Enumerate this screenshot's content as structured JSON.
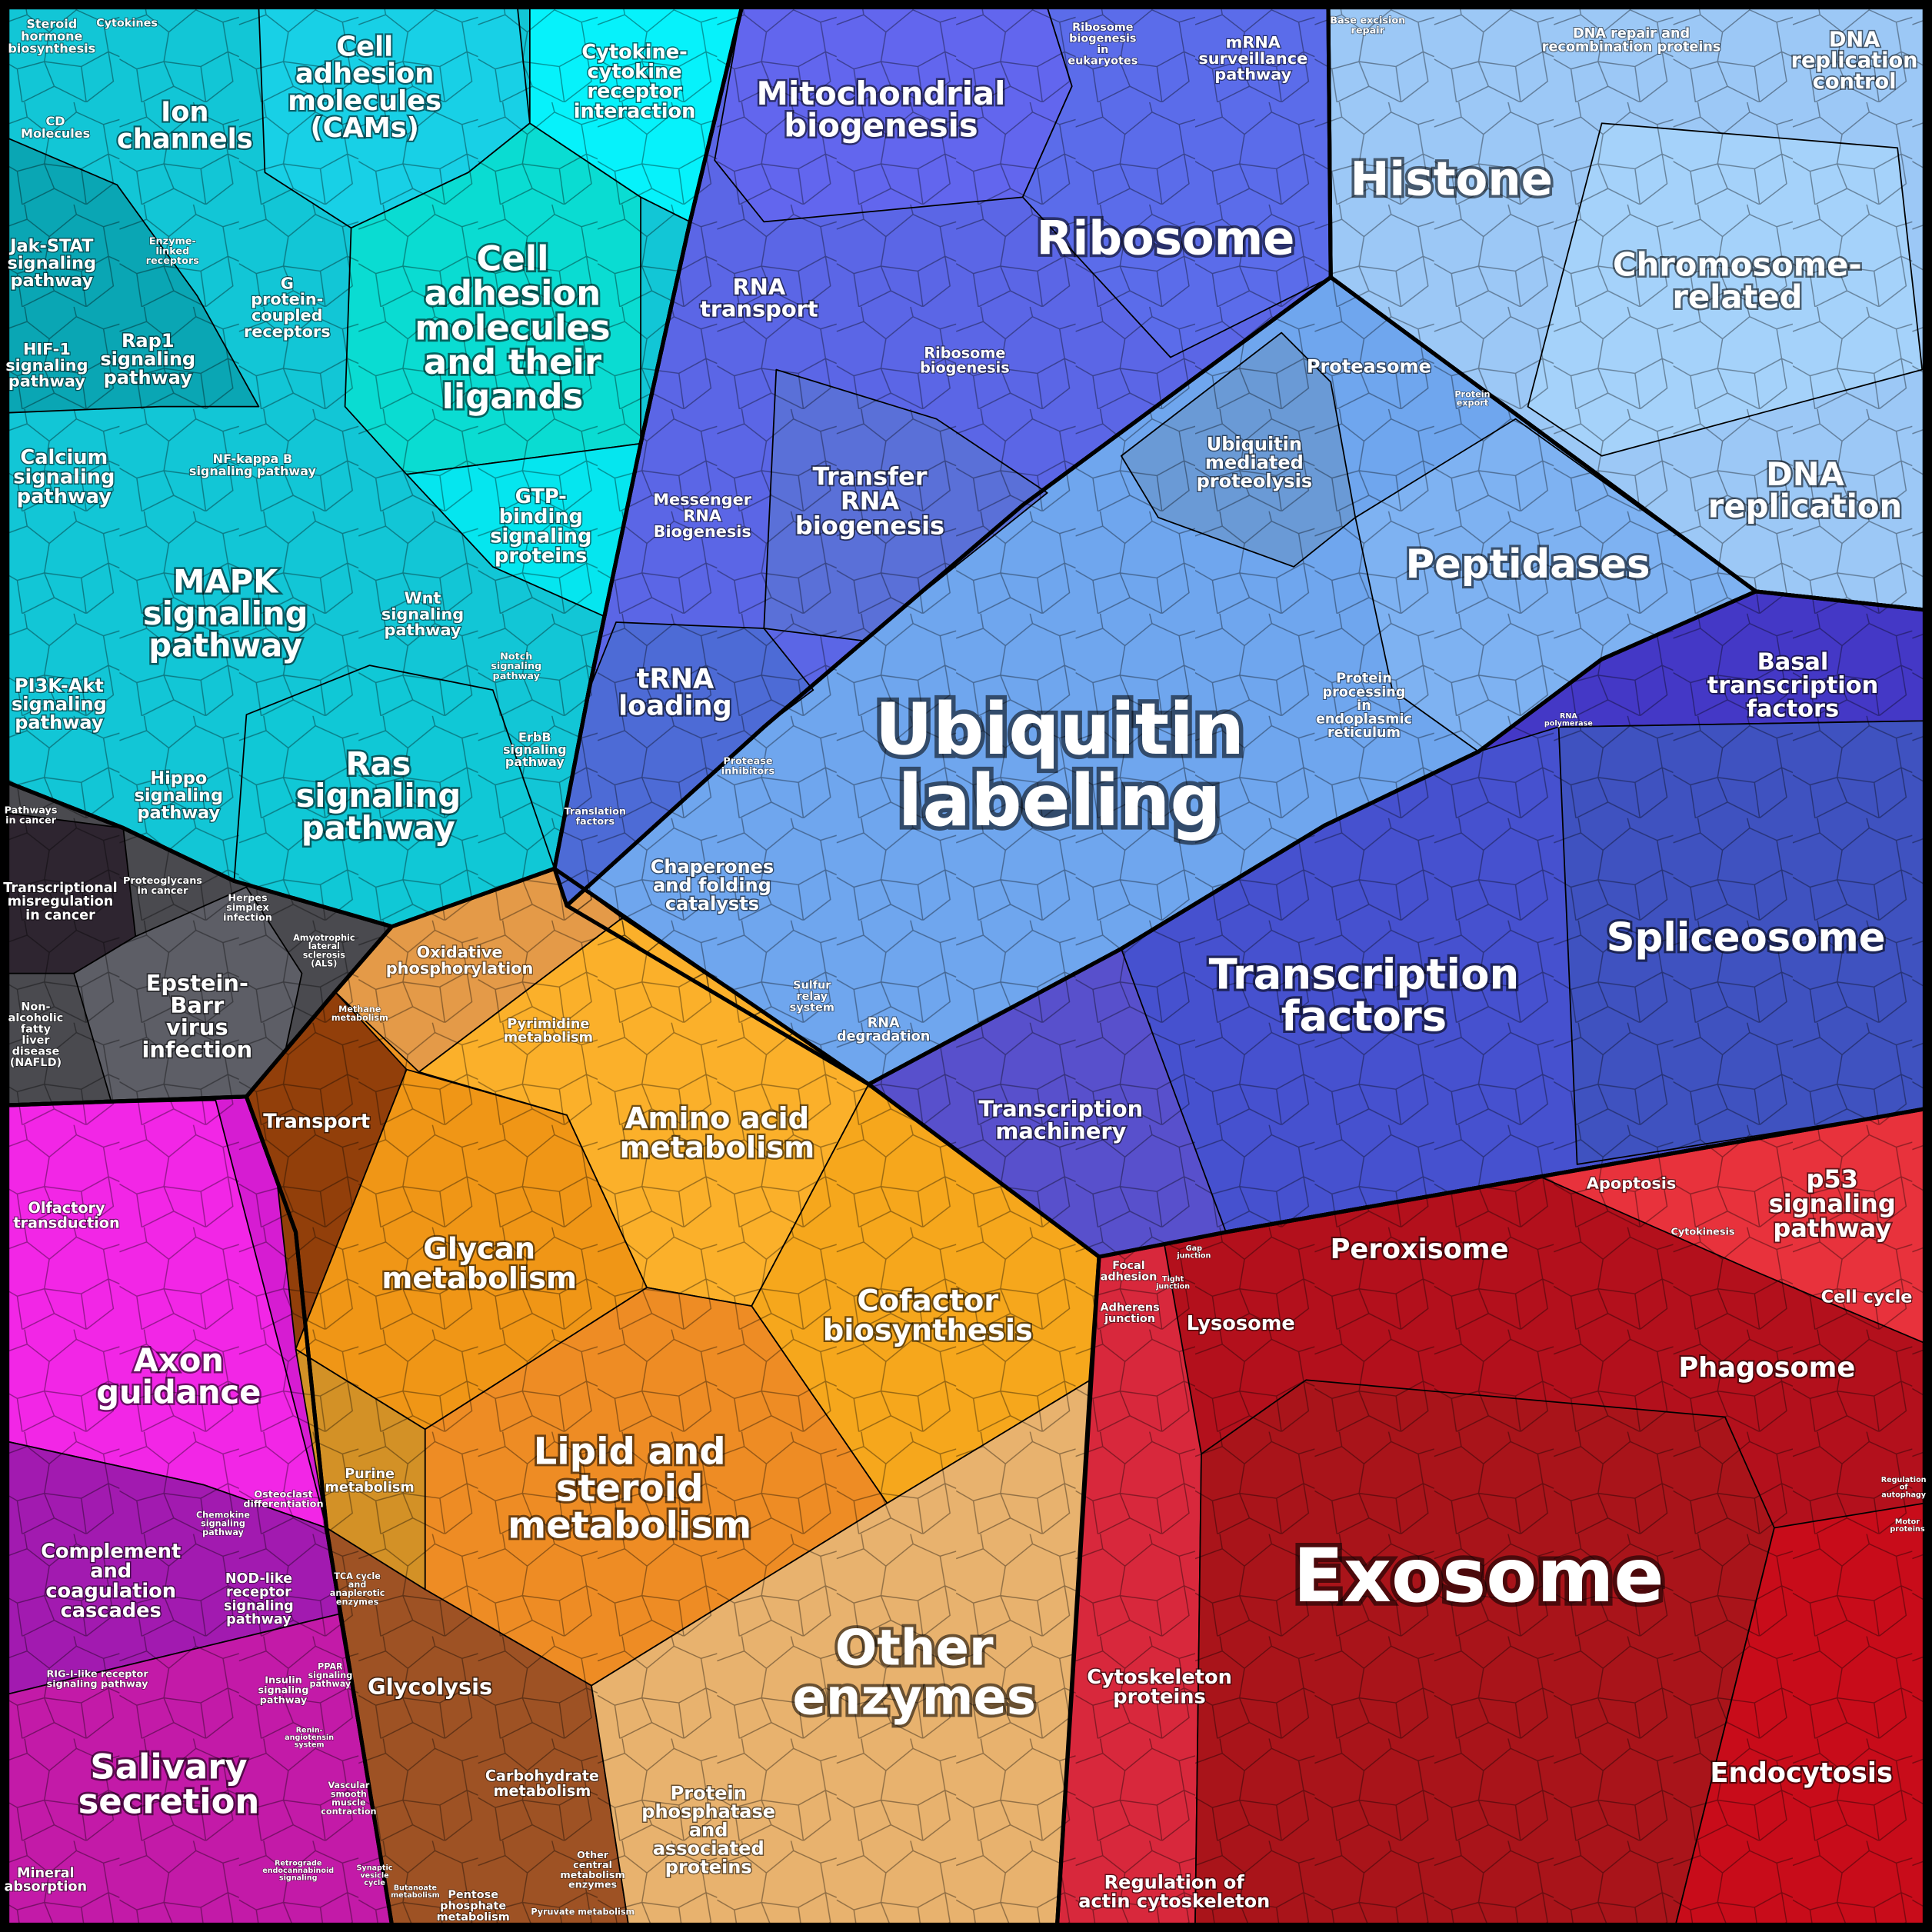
{
  "labels": [
    [
      "Ubiquitin",
      "labeling"
    ],
    [
      "Exosome"
    ],
    [
      "Ribosome"
    ],
    [
      "Histone"
    ],
    [
      "Chromosome-",
      "related"
    ],
    [
      "DNA",
      "replication"
    ],
    [
      "DNA",
      "replication",
      "control"
    ],
    [
      "Peptidases"
    ],
    [
      "Basal",
      "transcription",
      "factors"
    ],
    [
      "Spliceosome"
    ],
    [
      "Transcription",
      "factors"
    ],
    [
      "Transcription",
      "machinery"
    ],
    [
      "Mitochondrial",
      "biogenesis"
    ],
    [
      "RNA",
      "transport"
    ],
    [
      "Ribosome",
      "biogenesis"
    ],
    [
      "Transfer",
      "RNA",
      "biogenesis"
    ],
    [
      "Messenger",
      "RNA",
      "Biogenesis"
    ],
    [
      "tRNA",
      "loading"
    ],
    [
      "Ribosome",
      "biogenesis",
      "in",
      "eukaryotes"
    ],
    [
      "mRNA",
      "surveillance",
      "pathway"
    ],
    [
      "Base excision",
      "repair"
    ],
    [
      "DNA repair and",
      "recombination proteins"
    ],
    [
      "Proteasome"
    ],
    [
      "Protein",
      "export"
    ],
    [
      "Ubiquitin",
      "mediated",
      "proteolysis"
    ],
    [
      "Protein",
      "processing",
      "in",
      "endoplasmic",
      "reticulum"
    ],
    [
      "RNA",
      "polymerase"
    ],
    [
      "Protease",
      "inhibitors"
    ],
    [
      "Translation",
      "factors"
    ],
    [
      "Chaperones",
      "and folding",
      "catalysts"
    ],
    [
      "Sulfur",
      "relay",
      "system"
    ],
    [
      "RNA",
      "degradation"
    ],
    [
      "Cell",
      "adhesion",
      "molecules",
      "and their",
      "ligands"
    ],
    [
      "Cell",
      "adhesion",
      "molecules",
      "(CAMs)"
    ],
    [
      "Cytokine-",
      "cytokine",
      "receptor",
      "interaction"
    ],
    [
      "Ion",
      "channels"
    ],
    [
      "Steroid",
      "hormone",
      "biosynthesis"
    ],
    [
      "Cytokines"
    ],
    [
      "CD",
      "Molecules"
    ],
    [
      "Jak-STAT",
      "signaling",
      "pathway"
    ],
    [
      "Enzyme-",
      "linked",
      "receptors"
    ],
    [
      "G",
      "protein-",
      "coupled",
      "receptors"
    ],
    [
      "HIF-1",
      "signaling",
      "pathway"
    ],
    [
      "Rap1",
      "signaling",
      "pathway"
    ],
    [
      "NF-kappa B",
      "signaling pathway"
    ],
    [
      "Calcium",
      "signaling",
      "pathway"
    ],
    [
      "GTP-",
      "binding",
      "signaling",
      "proteins"
    ],
    [
      "MAPK",
      "signaling",
      "pathway"
    ],
    [
      "Wnt",
      "signaling",
      "pathway"
    ],
    [
      "Notch",
      "signaling",
      "pathway"
    ],
    [
      "PI3K-Akt",
      "signaling",
      "pathway"
    ],
    [
      "ErbB",
      "signaling",
      "pathway"
    ],
    [
      "Ras",
      "signaling",
      "pathway"
    ],
    [
      "Hippo",
      "signaling",
      "pathway"
    ],
    [
      "Pathways",
      "in cancer"
    ],
    [
      "Transcriptional",
      "misregulation",
      "in cancer"
    ],
    [
      "Proteoglycans",
      "in cancer"
    ],
    [
      "Herpes",
      "simplex",
      "infection"
    ],
    [
      "Amyotrophic",
      "lateral",
      "sclerosis",
      "(ALS)"
    ],
    [
      "Epstein-",
      "Barr",
      "virus",
      "infection"
    ],
    [
      "Non-",
      "alcoholic",
      "fatty",
      "liver",
      "disease",
      "(NAFLD)"
    ],
    [
      "Oxidative",
      "phosphorylation"
    ],
    [
      "Pyrimidine",
      "metabolism"
    ],
    [
      "Methane",
      "metabolism"
    ],
    [
      "Transport"
    ],
    [
      "Amino acid",
      "metabolism"
    ],
    [
      "Glycan",
      "metabolism"
    ],
    [
      "Cofactor",
      "biosynthesis"
    ],
    [
      "Lipid and",
      "steroid",
      "metabolism"
    ],
    [
      "Purine",
      "metabolism"
    ],
    [
      "TCA cycle",
      "and",
      "anaplerotic",
      "enzymes"
    ],
    [
      "Glycolysis"
    ],
    [
      "Carbohydrate",
      "metabolism"
    ],
    [
      "Other",
      "central",
      "metabolism",
      "enzymes"
    ],
    [
      "Butanoate",
      "metabolism"
    ],
    [
      "Pentose",
      "phosphate",
      "metabolism"
    ],
    [
      "Pyruvate metabolism"
    ],
    [
      "Other",
      "enzymes"
    ],
    [
      "Protein",
      "phosphatase",
      "and",
      "associated",
      "proteins"
    ],
    [
      "Olfactory",
      "transduction"
    ],
    [
      "Axon",
      "guidance"
    ],
    [
      "Osteoclast",
      "differentiation"
    ],
    [
      "Complement",
      "and",
      "coagulation",
      "cascades"
    ],
    [
      "Chemokine",
      "signaling",
      "pathway"
    ],
    [
      "NOD-like",
      "receptor",
      "signaling",
      "pathway"
    ],
    [
      "RIG-I-like receptor",
      "signaling pathway"
    ],
    [
      "Insulin",
      "signaling",
      "pathway"
    ],
    [
      "PPAR",
      "signaling",
      "pathway"
    ],
    [
      "Salivary",
      "secretion"
    ],
    [
      "Mineral",
      "absorption"
    ],
    [
      "Vascular",
      "smooth",
      "muscle",
      "contraction"
    ],
    [
      "Focal",
      "adhesion"
    ],
    [
      "Gap",
      "junction"
    ],
    [
      "Tight",
      "junction"
    ],
    [
      "Adherens",
      "junction"
    ],
    [
      "Lysosome"
    ],
    [
      "Peroxisome"
    ],
    [
      "Apoptosis"
    ],
    [
      "Cytokinesis"
    ],
    [
      "p53",
      "signaling",
      "pathway"
    ],
    [
      "Cell cycle"
    ],
    [
      "Phagosome"
    ],
    [
      "Regulation",
      "of",
      "autophagy"
    ],
    [
      "Motor",
      "proteins"
    ],
    [
      "Cytoskeleton",
      "proteins"
    ],
    [
      "Endocytosis"
    ],
    [
      "Regulation of",
      "actin cytoskeleton"
    ],
    [
      "Synaptic",
      "vesicle",
      "cycle"
    ],
    [
      "Retrograde",
      "endocannabinoid",
      "signaling"
    ],
    [
      "Renin-",
      "angiotensin",
      "system"
    ]
  ]
}
